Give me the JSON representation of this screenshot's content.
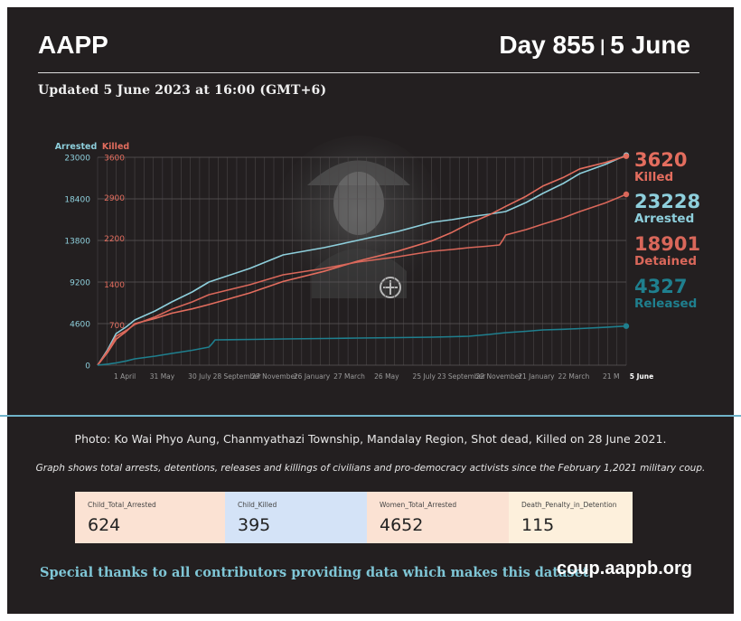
{
  "header": {
    "org": "AAPP",
    "day": "Day 855",
    "date": "5 June",
    "updated": "Updated 5 June 2023 at 16:00 (GMT+6)"
  },
  "colors": {
    "arrested": "#8ecfdc",
    "killed": "#e36d5e",
    "detained": "#d9675a",
    "released": "#1f7f8e",
    "background": "#231f20"
  },
  "chart_data": {
    "type": "line",
    "axis_titles": {
      "left": "Arrested",
      "right": "Killed"
    },
    "y_arrested_ticks": [
      "23000",
      "18400",
      "13800",
      "9200",
      "4600",
      "0"
    ],
    "y_killed_ticks": [
      "3600",
      "2900",
      "2200",
      "1400",
      "700"
    ],
    "x_ticks": [
      "1 April",
      "31 May",
      "30 July",
      "28 September",
      "27 November",
      "26 January",
      "27 March",
      "26 May",
      "25 July",
      "23 September",
      "22 November",
      "21 January",
      "22 March",
      "21 M"
    ],
    "x_end_label": "5 June",
    "ylim_arrested": [
      0,
      23000
    ],
    "ylim_killed": [
      0,
      3600
    ],
    "x_range_days": [
      0,
      855
    ],
    "series": [
      {
        "name": "Arrested",
        "axis": "arrested",
        "x": [
          0,
          30,
          60,
          120,
          180,
          300,
          420,
          540,
          600,
          660,
          720,
          780,
          855
        ],
        "y": [
          0,
          3500,
          5000,
          7000,
          9200,
          12200,
          13800,
          15800,
          16400,
          17000,
          19000,
          21200,
          23228
        ]
      },
      {
        "name": "Killed",
        "axis": "killed",
        "x": [
          0,
          30,
          60,
          120,
          180,
          300,
          420,
          540,
          600,
          660,
          720,
          780,
          855
        ],
        "y": [
          0,
          450,
          720,
          900,
          1050,
          1450,
          1800,
          2150,
          2450,
          2750,
          3100,
          3400,
          3620
        ]
      },
      {
        "name": "Detained",
        "axis": "arrested",
        "x": [
          0,
          30,
          60,
          120,
          180,
          300,
          420,
          540,
          600,
          650,
          660,
          720,
          780,
          855
        ],
        "y": [
          0,
          3200,
          4500,
          6200,
          7800,
          10000,
          11400,
          12600,
          13000,
          13300,
          14400,
          15600,
          17000,
          18901
        ]
      },
      {
        "name": "Released",
        "axis": "arrested",
        "x": [
          0,
          30,
          60,
          120,
          180,
          190,
          300,
          420,
          540,
          600,
          660,
          720,
          780,
          855
        ],
        "y": [
          0,
          250,
          700,
          1300,
          2000,
          2800,
          2900,
          3000,
          3100,
          3200,
          3600,
          3900,
          4050,
          4327
        ]
      }
    ],
    "end_labels": [
      {
        "value": "3620",
        "label": "Killed",
        "color": "#e36d5e"
      },
      {
        "value": "23228",
        "label": "Arrested",
        "color": "#8ecfdc"
      },
      {
        "value": "18901",
        "label": "Detained",
        "color": "#d9675a"
      },
      {
        "value": "4327",
        "label": "Released",
        "color": "#1f7f8e"
      }
    ]
  },
  "caption": "Photo: Ko Wai Phyo Aung, Chanmyathazi Township, Mandalay Region, Shot dead, Killed on 28 June 2021.",
  "note": "Graph shows total arrests, detentions, releases and killings of civilians and pro-democracy activists since the February 1,2021 military coup.",
  "cards": [
    {
      "title": "Child_Total_Arrested",
      "value": "624",
      "bg": "#fbe2d3"
    },
    {
      "title": "Child_Killed",
      "value": "395",
      "bg": "#d4e3f7"
    },
    {
      "title": "Women_Total_Arrested",
      "value": "4652",
      "bg": "#fbe2d3"
    },
    {
      "title": "Death_Penalty_in_Detention",
      "value": "115",
      "bg": "#fdf0dc"
    }
  ],
  "footer": {
    "thanks": "Special thanks to all contributors providing data which makes this dataset.",
    "url": "coup.aappb.org"
  }
}
